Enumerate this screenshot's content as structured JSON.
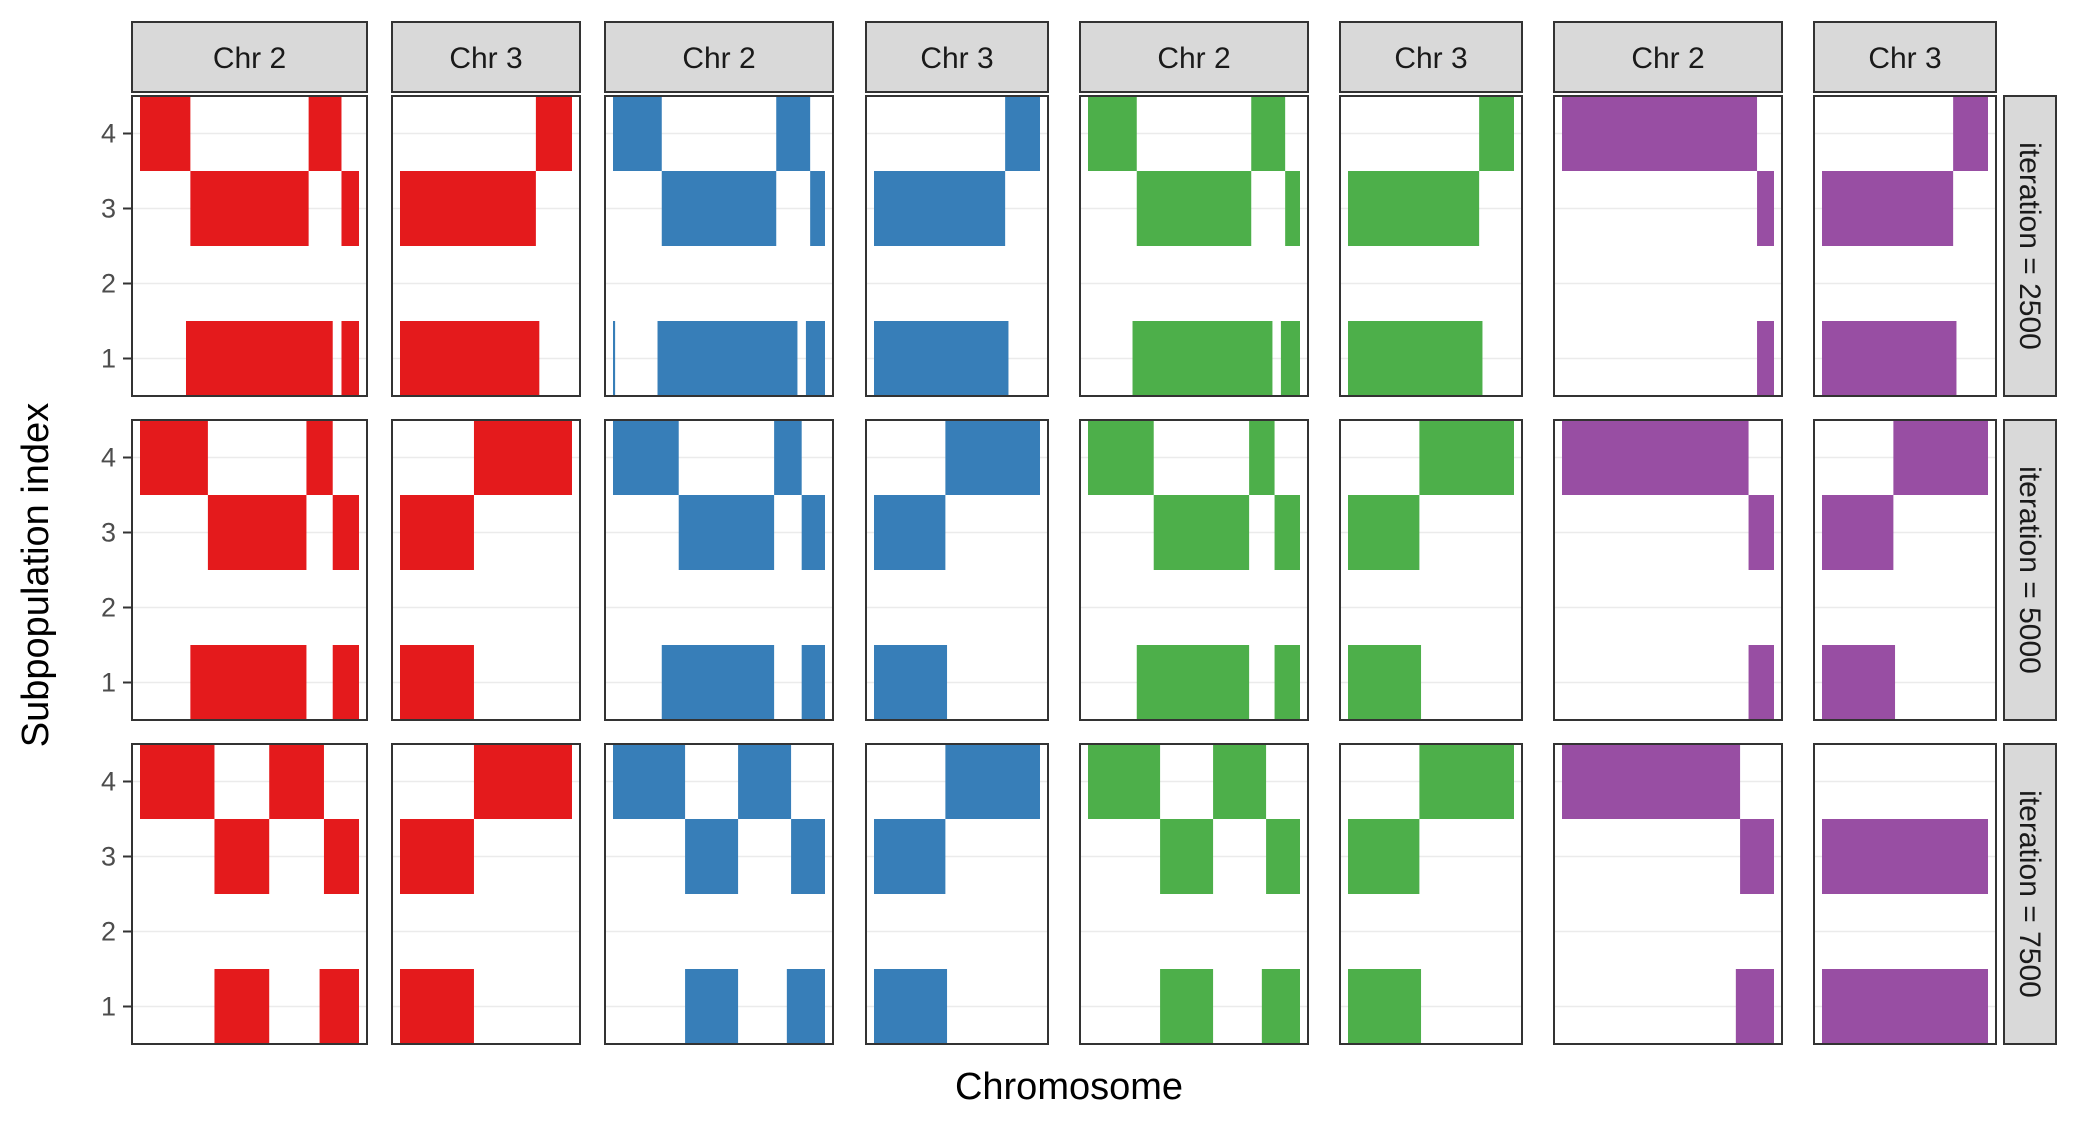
{
  "chart_data": {
    "type": "faceted-segment-heatmap",
    "title": "",
    "xlabel": "Chromosome",
    "ylabel": "Subpopulation index",
    "y_ticks": [
      1,
      2,
      3,
      4
    ],
    "ylim": [
      0.5,
      4.5
    ],
    "xlim": [
      0,
      1
    ],
    "x_tick_labels_shown": false,
    "column_strips": [
      "Chr 2",
      "Chr 3",
      "Chr 2",
      "Chr 3",
      "Chr 2",
      "Chr 3",
      "Chr 2",
      "Chr 3"
    ],
    "row_strips": [
      "iteration =  2500",
      "iteration =  5000",
      "iteration =  7500"
    ],
    "column_colors": [
      "#E41A1C",
      "#E41A1C",
      "#377EB8",
      "#377EB8",
      "#4DAF4A",
      "#4DAF4A",
      "#984EA3",
      "#984EA3"
    ],
    "segments_note": "Each segment is [subpopulation, start, end]; start/end as fraction of chromosome length",
    "panels": [
      [
        [
          [
            4,
            0.0,
            0.23
          ],
          [
            4,
            0.77,
            0.92
          ],
          [
            3,
            0.23,
            0.77
          ],
          [
            3,
            0.92,
            1.0
          ],
          [
            1,
            0.21,
            0.88
          ],
          [
            1,
            0.92,
            1.0
          ]
        ],
        [
          [
            4,
            0.79,
            1.0
          ],
          [
            3,
            0.0,
            0.79
          ],
          [
            1,
            0.0,
            0.81
          ]
        ],
        [
          [
            4,
            0.0,
            0.23
          ],
          [
            4,
            0.77,
            0.93
          ],
          [
            3,
            0.23,
            0.77
          ],
          [
            3,
            0.93,
            1.0
          ],
          [
            1,
            0.0,
            0.01
          ],
          [
            1,
            0.21,
            0.87
          ],
          [
            1,
            0.91,
            1.0
          ]
        ],
        [
          [
            4,
            0.79,
            1.0
          ],
          [
            3,
            0.0,
            0.79
          ],
          [
            1,
            0.0,
            0.81
          ]
        ],
        [
          [
            4,
            0.0,
            0.23
          ],
          [
            4,
            0.77,
            0.93
          ],
          [
            3,
            0.23,
            0.77
          ],
          [
            3,
            0.93,
            1.0
          ],
          [
            1,
            0.21,
            0.87
          ],
          [
            1,
            0.91,
            1.0
          ]
        ],
        [
          [
            4,
            0.79,
            1.0
          ],
          [
            3,
            0.0,
            0.79
          ],
          [
            1,
            0.0,
            0.81
          ]
        ],
        [
          [
            4,
            0.0,
            0.92
          ],
          [
            3,
            0.92,
            1.0
          ],
          [
            1,
            0.92,
            1.0
          ]
        ],
        [
          [
            4,
            0.79,
            1.0
          ],
          [
            3,
            0.0,
            0.79
          ],
          [
            1,
            0.0,
            0.81
          ]
        ]
      ],
      [
        [
          [
            4,
            0.0,
            0.31
          ],
          [
            4,
            0.76,
            0.88
          ],
          [
            3,
            0.31,
            0.76
          ],
          [
            3,
            0.88,
            1.0
          ],
          [
            1,
            0.23,
            0.76
          ],
          [
            1,
            0.88,
            1.0
          ]
        ],
        [
          [
            4,
            0.43,
            1.0
          ],
          [
            3,
            0.0,
            0.43
          ],
          [
            1,
            0.0,
            0.43
          ]
        ],
        [
          [
            4,
            0.0,
            0.31
          ],
          [
            4,
            0.76,
            0.89
          ],
          [
            3,
            0.31,
            0.76
          ],
          [
            3,
            0.89,
            1.0
          ],
          [
            1,
            0.23,
            0.76
          ],
          [
            1,
            0.89,
            1.0
          ]
        ],
        [
          [
            4,
            0.43,
            1.0
          ],
          [
            3,
            0.0,
            0.43
          ],
          [
            1,
            0.0,
            0.44
          ]
        ],
        [
          [
            4,
            0.0,
            0.31
          ],
          [
            4,
            0.76,
            0.88
          ],
          [
            3,
            0.31,
            0.76
          ],
          [
            3,
            0.88,
            1.0
          ],
          [
            1,
            0.23,
            0.76
          ],
          [
            1,
            0.88,
            1.0
          ]
        ],
        [
          [
            4,
            0.43,
            1.0
          ],
          [
            3,
            0.0,
            0.43
          ],
          [
            1,
            0.0,
            0.44
          ]
        ],
        [
          [
            4,
            0.0,
            0.88
          ],
          [
            3,
            0.88,
            1.0
          ],
          [
            1,
            0.88,
            1.0
          ]
        ],
        [
          [
            4,
            0.43,
            1.0
          ],
          [
            3,
            0.0,
            0.43
          ],
          [
            1,
            0.0,
            0.44
          ]
        ]
      ],
      [
        [
          [
            4,
            0.0,
            0.34
          ],
          [
            4,
            0.59,
            0.84
          ],
          [
            3,
            0.34,
            0.59
          ],
          [
            3,
            0.84,
            1.0
          ],
          [
            1,
            0.34,
            0.59
          ],
          [
            1,
            0.82,
            1.0
          ]
        ],
        [
          [
            4,
            0.43,
            1.0
          ],
          [
            3,
            0.0,
            0.43
          ],
          [
            1,
            0.0,
            0.43
          ]
        ],
        [
          [
            4,
            0.0,
            0.34
          ],
          [
            4,
            0.59,
            0.84
          ],
          [
            3,
            0.34,
            0.59
          ],
          [
            3,
            0.84,
            1.0
          ],
          [
            1,
            0.34,
            0.59
          ],
          [
            1,
            0.82,
            1.0
          ]
        ],
        [
          [
            4,
            0.43,
            1.0
          ],
          [
            3,
            0.0,
            0.43
          ],
          [
            1,
            0.0,
            0.44
          ]
        ],
        [
          [
            4,
            0.0,
            0.34
          ],
          [
            4,
            0.59,
            0.84
          ],
          [
            3,
            0.34,
            0.59
          ],
          [
            3,
            0.84,
            1.0
          ],
          [
            1,
            0.34,
            0.59
          ],
          [
            1,
            0.82,
            1.0
          ]
        ],
        [
          [
            4,
            0.43,
            1.0
          ],
          [
            3,
            0.0,
            0.43
          ],
          [
            1,
            0.0,
            0.44
          ]
        ],
        [
          [
            4,
            0.0,
            0.84
          ],
          [
            3,
            0.84,
            1.0
          ],
          [
            1,
            0.82,
            1.0
          ]
        ],
        [
          [
            3,
            0.0,
            1.0
          ],
          [
            1,
            0.0,
            1.0
          ]
        ]
      ]
    ]
  }
}
